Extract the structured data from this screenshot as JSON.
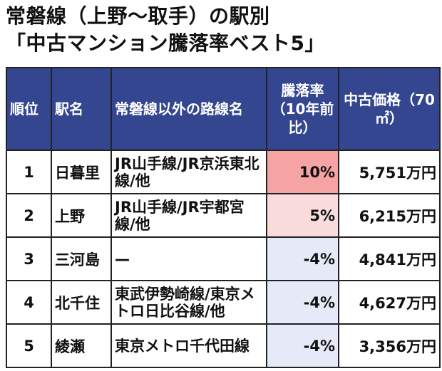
{
  "title": {
    "line1": "常磐線（上野〜取手）の駅別",
    "line2": "「中古マンション騰落率ベスト5」"
  },
  "table": {
    "headers": {
      "rank": "順位",
      "station": "駅名",
      "other_lines": "常磐線以外の路線名",
      "change": "騰落率（10年前比）",
      "price": "中古価格（70㎡）"
    },
    "rows": [
      {
        "rank": "1",
        "station": "日暮里",
        "other_lines": "JR山手線/JR京浜東北線/他",
        "change": "10%",
        "price": "5,751万円",
        "change_bg": "#f6a3a3"
      },
      {
        "rank": "2",
        "station": "上野",
        "other_lines": "JR山手線/JR宇都宮線/他",
        "change": "5%",
        "price": "6,215万円",
        "change_bg": "#fadcdc"
      },
      {
        "rank": "3",
        "station": "三河島",
        "other_lines": "—",
        "change": "-4%",
        "price": "4,841万円",
        "change_bg": "#e6e9f8"
      },
      {
        "rank": "4",
        "station": "北千住",
        "other_lines": "東武伊勢崎線/東京メトロ日比谷線/他",
        "change": "-4%",
        "price": "4,627万円",
        "change_bg": "#e6e9f8"
      },
      {
        "rank": "5",
        "station": "綾瀬",
        "other_lines": "東京メトロ千代田線",
        "change": "-4%",
        "price": "3,356万円",
        "change_bg": "#e6e9f8"
      }
    ]
  },
  "colors": {
    "header_bg": "#34468f",
    "header_text": "#ffffff",
    "border": "#222222",
    "positive_high": "#f6a3a3",
    "positive_low": "#fadcdc",
    "negative": "#e6e9f8"
  }
}
